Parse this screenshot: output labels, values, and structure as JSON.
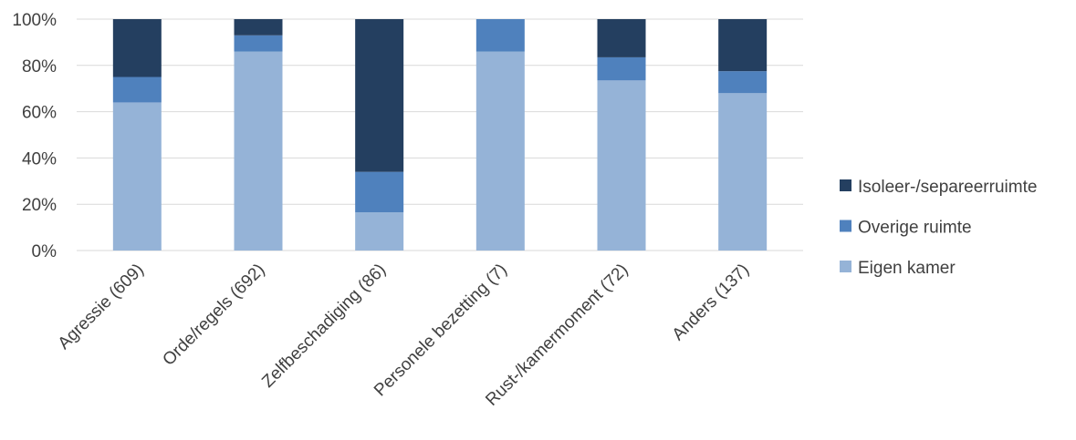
{
  "chart_data": {
    "type": "bar",
    "stacked": true,
    "percent": true,
    "categories": [
      "Agressie (609)",
      "Orde/regels (692)",
      "Zelfbeschadiging (86)",
      "Personele bezetting (7)",
      "Rust-/kamermoment (72)",
      "Anders (137)"
    ],
    "series": [
      {
        "name": "Eigen kamer",
        "color": "#95b3d7",
        "values": [
          64,
          86,
          16.5,
          86,
          73.5,
          68
        ]
      },
      {
        "name": "Overige ruimte",
        "color": "#4f81bd",
        "values": [
          11,
          7,
          17.5,
          14,
          10,
          9.5
        ]
      },
      {
        "name": "Isoleer-/separeerruimte",
        "color": "#243f60",
        "values": [
          25,
          7,
          66,
          0,
          16.5,
          22.5
        ]
      }
    ],
    "legend_order": [
      "Isoleer-/separeerruimte",
      "Overige ruimte",
      "Eigen kamer"
    ],
    "y_ticks": [
      "0%",
      "20%",
      "40%",
      "60%",
      "80%",
      "100%"
    ],
    "ylim": [
      0,
      100
    ],
    "grid": true,
    "legend_position": "right"
  }
}
